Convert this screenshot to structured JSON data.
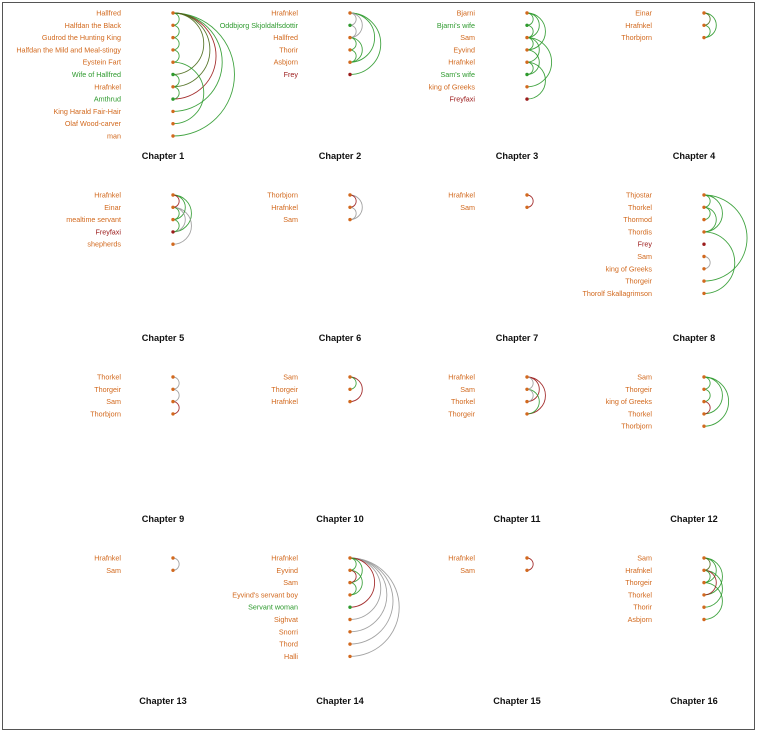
{
  "colors": {
    "orange": "#d2691e",
    "green": "#2e9a2e",
    "red": "#9b1b1b",
    "gray": "#999999",
    "darkgreen": "#4a6a1a"
  },
  "panels": [
    {
      "title": "Chapter 1",
      "nodes": [
        {
          "name": "Hallfred",
          "c": "orange"
        },
        {
          "name": "Halfdan the Black",
          "c": "orange"
        },
        {
          "name": "Gudrod the Hunting King",
          "c": "orange"
        },
        {
          "name": "Halfdan the Mild and Meal-stingy",
          "c": "orange"
        },
        {
          "name": "Eystein Fart",
          "c": "orange"
        },
        {
          "name": "Wife of Hallfred",
          "c": "green"
        },
        {
          "name": "Hrafnkel",
          "c": "orange"
        },
        {
          "name": "Amthrud",
          "c": "green"
        },
        {
          "name": "King Harald Fair-Hair",
          "c": "orange"
        },
        {
          "name": "Olaf Wood-carver",
          "c": "orange"
        },
        {
          "name": "man",
          "c": "orange"
        }
      ],
      "links": [
        {
          "s": 0,
          "t": 1,
          "c": "green"
        },
        {
          "s": 1,
          "t": 2,
          "c": "green"
        },
        {
          "s": 2,
          "t": 3,
          "c": "green"
        },
        {
          "s": 3,
          "t": 4,
          "c": "green"
        },
        {
          "s": 0,
          "t": 5,
          "c": "darkgreen"
        },
        {
          "s": 0,
          "t": 6,
          "c": "darkgreen"
        },
        {
          "s": 0,
          "t": 7,
          "c": "red"
        },
        {
          "s": 0,
          "t": 8,
          "c": "green"
        },
        {
          "s": 0,
          "t": 10,
          "c": "green"
        },
        {
          "s": 5,
          "t": 6,
          "c": "green"
        },
        {
          "s": 6,
          "t": 7,
          "c": "green"
        },
        {
          "s": 4,
          "t": 9,
          "c": "green"
        }
      ]
    },
    {
      "title": "Chapter 2",
      "nodes": [
        {
          "name": "Hrafnkel",
          "c": "orange"
        },
        {
          "name": "Oddbjorg Skjoldalfsdottir",
          "c": "green"
        },
        {
          "name": "Hallfred",
          "c": "orange"
        },
        {
          "name": "Thorir",
          "c": "orange"
        },
        {
          "name": "Asbjorn",
          "c": "orange"
        },
        {
          "name": "Frey",
          "c": "red"
        }
      ],
      "links": [
        {
          "s": 0,
          "t": 1,
          "c": "gray"
        },
        {
          "s": 1,
          "t": 2,
          "c": "gray"
        },
        {
          "s": 0,
          "t": 2,
          "c": "gray"
        },
        {
          "s": 2,
          "t": 3,
          "c": "green"
        },
        {
          "s": 2,
          "t": 4,
          "c": "green"
        },
        {
          "s": 0,
          "t": 5,
          "c": "green"
        },
        {
          "s": 0,
          "t": 4,
          "c": "green"
        },
        {
          "s": 3,
          "t": 4,
          "c": "green"
        }
      ]
    },
    {
      "title": "Chapter 3",
      "nodes": [
        {
          "name": "Bjarni",
          "c": "orange"
        },
        {
          "name": "Bjarni's wife",
          "c": "green"
        },
        {
          "name": "Sam",
          "c": "orange"
        },
        {
          "name": "Eyvind",
          "c": "orange"
        },
        {
          "name": "Hrafnkel",
          "c": "orange"
        },
        {
          "name": "Sam's wife",
          "c": "green"
        },
        {
          "name": "king of Greeks",
          "c": "orange"
        },
        {
          "name": "Freyfaxi",
          "c": "red"
        }
      ],
      "links": [
        {
          "s": 0,
          "t": 1,
          "c": "green"
        },
        {
          "s": 0,
          "t": 2,
          "c": "green"
        },
        {
          "s": 0,
          "t": 3,
          "c": "green"
        },
        {
          "s": 1,
          "t": 2,
          "c": "green"
        },
        {
          "s": 2,
          "t": 3,
          "c": "green"
        },
        {
          "s": 2,
          "t": 4,
          "c": "green"
        },
        {
          "s": 4,
          "t": 5,
          "c": "green"
        },
        {
          "s": 4,
          "t": 7,
          "c": "green"
        },
        {
          "s": 2,
          "t": 6,
          "c": "green"
        },
        {
          "s": 3,
          "t": 5,
          "c": "green"
        }
      ]
    },
    {
      "title": "Chapter 4",
      "nodes": [
        {
          "name": "Einar",
          "c": "orange"
        },
        {
          "name": "Hrafnkel",
          "c": "orange"
        },
        {
          "name": "Thorbjorn",
          "c": "orange"
        }
      ],
      "links": [
        {
          "s": 0,
          "t": 1,
          "c": "darkgreen"
        },
        {
          "s": 0,
          "t": 2,
          "c": "green"
        },
        {
          "s": 1,
          "t": 2,
          "c": "green"
        }
      ]
    },
    {
      "title": "Chapter 5",
      "nodes": [
        {
          "name": "Hrafnkel",
          "c": "orange"
        },
        {
          "name": "Einar",
          "c": "orange"
        },
        {
          "name": "mealtime servant",
          "c": "orange"
        },
        {
          "name": "Freyfaxi",
          "c": "red"
        },
        {
          "name": "shepherds",
          "c": "orange"
        }
      ],
      "links": [
        {
          "s": 0,
          "t": 1,
          "c": "red"
        },
        {
          "s": 1,
          "t": 2,
          "c": "green"
        },
        {
          "s": 0,
          "t": 2,
          "c": "green"
        },
        {
          "s": 0,
          "t": 3,
          "c": "green"
        },
        {
          "s": 1,
          "t": 3,
          "c": "gray"
        },
        {
          "s": 1,
          "t": 4,
          "c": "gray"
        },
        {
          "s": 2,
          "t": 3,
          "c": "green"
        }
      ]
    },
    {
      "title": "Chapter 6",
      "nodes": [
        {
          "name": "Thorbjorn",
          "c": "orange"
        },
        {
          "name": "Hrafnkel",
          "c": "orange"
        },
        {
          "name": "Sam",
          "c": "orange"
        }
      ],
      "links": [
        {
          "s": 0,
          "t": 1,
          "c": "red"
        },
        {
          "s": 0,
          "t": 2,
          "c": "gray"
        },
        {
          "s": 1,
          "t": 2,
          "c": "gray"
        }
      ]
    },
    {
      "title": "Chapter 7",
      "nodes": [
        {
          "name": "Hrafnkel",
          "c": "orange"
        },
        {
          "name": "Sam",
          "c": "orange"
        }
      ],
      "links": [
        {
          "s": 0,
          "t": 1,
          "c": "red"
        }
      ]
    },
    {
      "title": "Chapter 8",
      "nodes": [
        {
          "name": "Thjostar",
          "c": "orange"
        },
        {
          "name": "Thorkel",
          "c": "orange"
        },
        {
          "name": "Thormod",
          "c": "orange"
        },
        {
          "name": "Thordis",
          "c": "orange"
        },
        {
          "name": "Frey",
          "c": "red"
        },
        {
          "name": "Sam",
          "c": "orange"
        },
        {
          "name": "king of Greeks",
          "c": "orange"
        },
        {
          "name": "Thorgeir",
          "c": "orange"
        },
        {
          "name": "Thorolf Skallagrimson",
          "c": "orange"
        }
      ],
      "links": [
        {
          "s": 0,
          "t": 1,
          "c": "green"
        },
        {
          "s": 1,
          "t": 2,
          "c": "green"
        },
        {
          "s": 0,
          "t": 3,
          "c": "green"
        },
        {
          "s": 1,
          "t": 3,
          "c": "green"
        },
        {
          "s": 0,
          "t": 7,
          "c": "green"
        },
        {
          "s": 3,
          "t": 8,
          "c": "green"
        },
        {
          "s": 5,
          "t": 6,
          "c": "gray"
        }
      ]
    },
    {
      "title": "Chapter 9",
      "nodes": [
        {
          "name": "Thorkel",
          "c": "orange"
        },
        {
          "name": "Thorgeir",
          "c": "orange"
        },
        {
          "name": "Sam",
          "c": "orange"
        },
        {
          "name": "Thorbjorn",
          "c": "orange"
        }
      ],
      "links": [
        {
          "s": 0,
          "t": 1,
          "c": "gray"
        },
        {
          "s": 1,
          "t": 2,
          "c": "gray"
        },
        {
          "s": 2,
          "t": 3,
          "c": "red"
        }
      ]
    },
    {
      "title": "Chapter 10",
      "nodes": [
        {
          "name": "Sam",
          "c": "orange"
        },
        {
          "name": "Thorgeir",
          "c": "orange"
        },
        {
          "name": "Hrafnkel",
          "c": "orange"
        }
      ],
      "links": [
        {
          "s": 0,
          "t": 1,
          "c": "green"
        },
        {
          "s": 0,
          "t": 2,
          "c": "red"
        }
      ]
    },
    {
      "title": "Chapter 11",
      "nodes": [
        {
          "name": "Hrafnkel",
          "c": "orange"
        },
        {
          "name": "Sam",
          "c": "orange"
        },
        {
          "name": "Thorkel",
          "c": "orange"
        },
        {
          "name": "Thorgeir",
          "c": "orange"
        }
      ],
      "links": [
        {
          "s": 0,
          "t": 1,
          "c": "gray"
        },
        {
          "s": 0,
          "t": 2,
          "c": "red"
        },
        {
          "s": 0,
          "t": 3,
          "c": "red"
        },
        {
          "s": 1,
          "t": 3,
          "c": "green"
        },
        {
          "s": 1,
          "t": 2,
          "c": "gray"
        }
      ]
    },
    {
      "title": "Chapter 12",
      "nodes": [
        {
          "name": "Sam",
          "c": "orange"
        },
        {
          "name": "Thorgeir",
          "c": "orange"
        },
        {
          "name": "king of Greeks",
          "c": "orange"
        },
        {
          "name": "Thorkel",
          "c": "orange"
        },
        {
          "name": "Thorbjorn",
          "c": "orange"
        }
      ],
      "links": [
        {
          "s": 0,
          "t": 1,
          "c": "green"
        },
        {
          "s": 1,
          "t": 2,
          "c": "green"
        },
        {
          "s": 0,
          "t": 3,
          "c": "green"
        },
        {
          "s": 0,
          "t": 4,
          "c": "green"
        },
        {
          "s": 2,
          "t": 3,
          "c": "red"
        }
      ]
    },
    {
      "title": "Chapter 13",
      "nodes": [
        {
          "name": "Hrafnkel",
          "c": "orange"
        },
        {
          "name": "Sam",
          "c": "orange"
        }
      ],
      "links": [
        {
          "s": 0,
          "t": 1,
          "c": "gray"
        }
      ]
    },
    {
      "title": "Chapter 14",
      "nodes": [
        {
          "name": "Hrafnkel",
          "c": "orange"
        },
        {
          "name": "Eyvind",
          "c": "orange"
        },
        {
          "name": "Sam",
          "c": "orange"
        },
        {
          "name": "Eyvind's servant boy",
          "c": "orange"
        },
        {
          "name": "Servant woman",
          "c": "green"
        },
        {
          "name": "Sighvat",
          "c": "orange"
        },
        {
          "name": "Snorri",
          "c": "orange"
        },
        {
          "name": "Thord",
          "c": "orange"
        },
        {
          "name": "Halli",
          "c": "orange"
        }
      ],
      "links": [
        {
          "s": 0,
          "t": 1,
          "c": "green"
        },
        {
          "s": 1,
          "t": 2,
          "c": "red"
        },
        {
          "s": 0,
          "t": 2,
          "c": "green"
        },
        {
          "s": 1,
          "t": 3,
          "c": "green"
        },
        {
          "s": 0,
          "t": 4,
          "c": "red"
        },
        {
          "s": 0,
          "t": 5,
          "c": "gray"
        },
        {
          "s": 0,
          "t": 6,
          "c": "gray"
        },
        {
          "s": 0,
          "t": 7,
          "c": "gray"
        },
        {
          "s": 0,
          "t": 8,
          "c": "gray"
        },
        {
          "s": 2,
          "t": 3,
          "c": "green"
        }
      ]
    },
    {
      "title": "Chapter 15",
      "nodes": [
        {
          "name": "Hrafnkel",
          "c": "orange"
        },
        {
          "name": "Sam",
          "c": "orange"
        }
      ],
      "links": [
        {
          "s": 0,
          "t": 1,
          "c": "red"
        }
      ]
    },
    {
      "title": "Chapter 16",
      "nodes": [
        {
          "name": "Sam",
          "c": "orange"
        },
        {
          "name": "Hrafnkel",
          "c": "orange"
        },
        {
          "name": "Thorgeir",
          "c": "orange"
        },
        {
          "name": "Thorkel",
          "c": "orange"
        },
        {
          "name": "Thorir",
          "c": "orange"
        },
        {
          "name": "Asbjorn",
          "c": "orange"
        }
      ],
      "links": [
        {
          "s": 0,
          "t": 1,
          "c": "darkgreen"
        },
        {
          "s": 0,
          "t": 2,
          "c": "green"
        },
        {
          "s": 1,
          "t": 2,
          "c": "green"
        },
        {
          "s": 0,
          "t": 3,
          "c": "green"
        },
        {
          "s": 1,
          "t": 4,
          "c": "green"
        },
        {
          "s": 2,
          "t": 5,
          "c": "green"
        },
        {
          "s": 1,
          "t": 3,
          "c": "red"
        }
      ]
    }
  ]
}
